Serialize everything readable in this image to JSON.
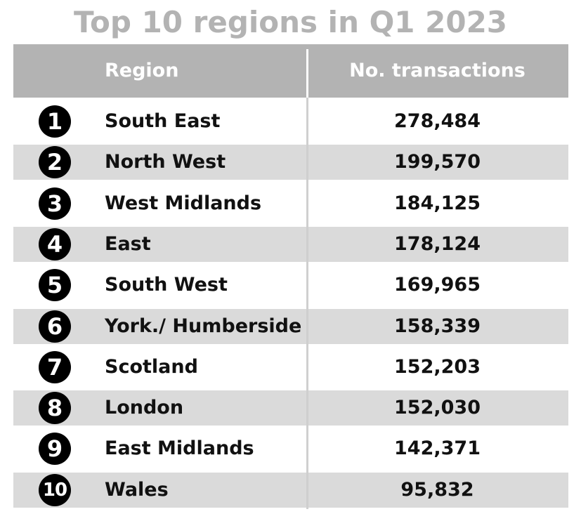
{
  "chart_data": {
    "type": "table",
    "title": "Top 10 regions in Q1 2023",
    "columns": [
      "Region",
      "No. transactions"
    ],
    "rows": [
      {
        "rank": "1",
        "region": "South East",
        "transactions": "278,484"
      },
      {
        "rank": "2",
        "region": "North West",
        "transactions": "199,570"
      },
      {
        "rank": "3",
        "region": "West Midlands",
        "transactions": "184,125"
      },
      {
        "rank": "4",
        "region": "East",
        "transactions": "178,124"
      },
      {
        "rank": "5",
        "region": "South West",
        "transactions": "169,965"
      },
      {
        "rank": "6",
        "region": "York./ Humberside",
        "transactions": "158,339"
      },
      {
        "rank": "7",
        "region": "Scotland",
        "transactions": "152,203"
      },
      {
        "rank": "8",
        "region": "London",
        "transactions": "152,030"
      },
      {
        "rank": "9",
        "region": "East Midlands",
        "transactions": "142,371"
      },
      {
        "rank": "10",
        "region": "Wales",
        "transactions": "95,832"
      }
    ]
  },
  "colors": {
    "title": "#b3b3b3",
    "header_bg": "#b3b3b3",
    "header_text": "#ffffff",
    "alt_row": "#dadada",
    "badge": "#000000"
  }
}
